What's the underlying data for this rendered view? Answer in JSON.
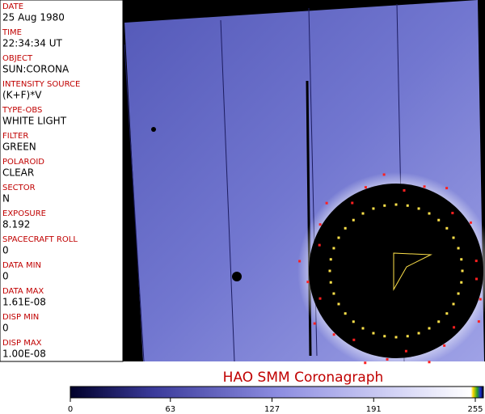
{
  "fields": [
    {
      "label": "DATE",
      "value": "25 Aug 1980"
    },
    {
      "label": "TIME",
      "value": "22:34:34 UT"
    },
    {
      "label": "OBJECT",
      "value": "SUN:CORONA"
    },
    {
      "label": "INTENSITY SOURCE",
      "value": "(K+F)*V"
    },
    {
      "label": "TYPE-OBS",
      "value": "WHITE LIGHT"
    },
    {
      "label": "FILTER",
      "value": "GREEN"
    },
    {
      "label": "POLAROID",
      "value": "CLEAR"
    },
    {
      "label": "SECTOR",
      "value": "N"
    },
    {
      "label": "EXPOSURE",
      "value": "8.192"
    },
    {
      "label": "SPACECRAFT ROLL",
      "value": "0"
    },
    {
      "label": "DATA MIN",
      "value": "0"
    },
    {
      "label": "DATA MAX",
      "value": "1.61E-08"
    },
    {
      "label": "DISP MIN",
      "value": "0"
    },
    {
      "label": "DISP MAX",
      "value": "1.00E-08"
    }
  ],
  "title": "HAO   SMM Coronagraph",
  "colorbar": {
    "lim": [
      0,
      255
    ],
    "ticks": [
      0,
      63,
      127,
      191,
      255
    ]
  }
}
